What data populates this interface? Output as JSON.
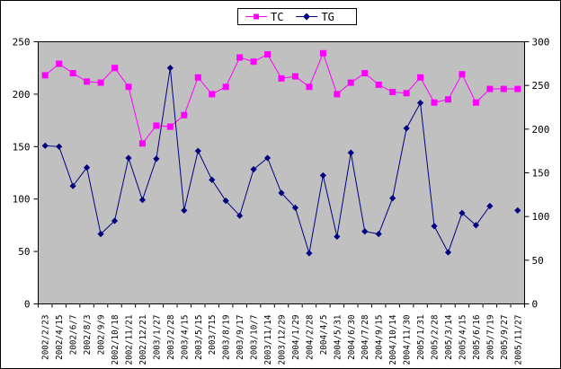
{
  "chart_data": {
    "type": "line",
    "title": "",
    "legend_position": "top",
    "plot_background": "#C0C0C0",
    "grid": false,
    "categories": [
      "2002/2/23",
      "2002/4/15",
      "2002/6/7",
      "2002/8/3",
      "2002/9/9",
      "2002/10/18",
      "2002/11/21",
      "2002/12/21",
      "2003/1/27",
      "2003/2/28",
      "2003/4/15",
      "2003/5/15",
      "2003/715",
      "2003/8/19",
      "2003/9/17",
      "2003/10/7",
      "2003/11/14",
      "2003/12/29",
      "2004/1/29",
      "2004/2/28",
      "2004/4/5",
      "2004/5/31",
      "2004/6/30",
      "2004/7/28",
      "2004/9/15",
      "2004/10/14",
      "2004/11/30",
      "2005/1/31",
      "2005/2/28",
      "2005/3/14",
      "2005/4/15",
      "2005/6/16",
      "2005/7/19",
      "2005/9/27",
      "2005/11/27"
    ],
    "series": [
      {
        "name": "TC",
        "axis": "left",
        "color": "#FF00FF",
        "marker": "square",
        "values": [
          218,
          229,
          220,
          212,
          211,
          225,
          207,
          153,
          170,
          169,
          180,
          216,
          200,
          207,
          235,
          231,
          238,
          215,
          217,
          207,
          239,
          200,
          211,
          220,
          209,
          202,
          201,
          216,
          192,
          195,
          219,
          192,
          205,
          205,
          205
        ]
      },
      {
        "name": "TG",
        "axis": "right",
        "color": "#000080",
        "marker": "diamond",
        "values": [
          181,
          180,
          135,
          156,
          80,
          95,
          167,
          119,
          166,
          270,
          107,
          175,
          142,
          118,
          101,
          154,
          167,
          127,
          110,
          58,
          147,
          77,
          173,
          83,
          80,
          121,
          201,
          230,
          89,
          59,
          104,
          90,
          112,
          null,
          107
        ]
      }
    ],
    "axes": {
      "left": {
        "min": 0,
        "max": 250,
        "step": 50,
        "tick_labels": [
          "0",
          "50",
          "100",
          "150",
          "200",
          "250"
        ]
      },
      "right": {
        "min": 0,
        "max": 300,
        "step": 50,
        "tick_labels": [
          "0",
          "50",
          "100",
          "150",
          "200",
          "250",
          "300"
        ]
      }
    }
  }
}
